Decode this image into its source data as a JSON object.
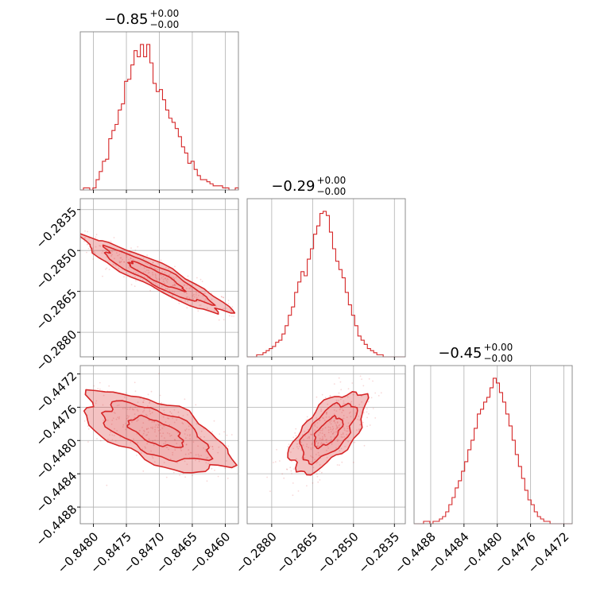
{
  "chart_data": {
    "type": "corner",
    "color": "#d62728",
    "parameters": [
      {
        "name": "p0",
        "title_main": "−0.85",
        "title_sup": "+0.00",
        "title_sub": "−0.00",
        "range": [
          -0.8482,
          -0.8458
        ],
        "ticks": [
          -0.848,
          -0.8475,
          -0.847,
          -0.8465,
          -0.846
        ],
        "tick_labels": [
          "−0.8480",
          "−0.8475",
          "−0.8470",
          "−0.8465",
          "−0.8460"
        ],
        "hist": [
          0,
          1,
          1,
          0,
          1,
          5,
          9,
          14,
          15,
          25,
          29,
          32,
          39,
          42,
          53,
          54,
          61,
          68,
          65,
          71,
          65,
          71,
          62,
          52,
          48,
          49,
          44,
          39,
          35,
          33,
          30,
          26,
          21,
          18,
          13,
          14,
          10,
          7,
          5,
          5,
          4,
          3,
          2,
          2,
          2,
          1,
          1,
          0,
          0,
          1
        ]
      },
      {
        "name": "p1",
        "title_main": "−0.29",
        "title_sup": "+0.00",
        "title_sub": "−0.00",
        "range": [
          -0.2889,
          -0.2831
        ],
        "ticks": [
          -0.288,
          -0.2865,
          -0.285,
          -0.2835
        ],
        "tick_labels": [
          "−0.2880",
          "−0.2865",
          "−0.2850",
          "−0.2835"
        ],
        "hist": [
          0,
          0,
          0,
          1,
          1,
          2,
          3,
          4,
          5,
          7,
          8,
          11,
          15,
          20,
          24,
          31,
          36,
          41,
          39,
          47,
          52,
          59,
          63,
          69,
          70,
          68,
          60,
          52,
          46,
          42,
          38,
          31,
          25,
          20,
          15,
          10,
          8,
          6,
          4,
          3,
          2,
          1,
          1,
          0,
          0,
          0,
          0,
          0,
          0,
          0
        ]
      },
      {
        "name": "p2",
        "title_main": "−0.45",
        "title_sup": "+0.00",
        "title_sub": "−0.00",
        "range": [
          -0.449,
          -0.4471
        ],
        "ticks": [
          -0.4488,
          -0.4484,
          -0.448,
          -0.4476,
          -0.4472
        ],
        "tick_labels": [
          "−0.4488",
          "−0.4484",
          "−0.4480",
          "−0.4476",
          "−0.4472"
        ],
        "hist": [
          0,
          0,
          0,
          1,
          1,
          0,
          1,
          1,
          2,
          3,
          5,
          8,
          11,
          15,
          18,
          22,
          26,
          31,
          35,
          40,
          46,
          48,
          51,
          53,
          57,
          61,
          59,
          55,
          51,
          46,
          41,
          35,
          29,
          24,
          19,
          14,
          10,
          8,
          5,
          3,
          2,
          1,
          1,
          0,
          0,
          0,
          0,
          0,
          0,
          0
        ]
      }
    ],
    "pairs": [
      {
        "x": 0,
        "y": 1,
        "center": [
          -0.84705,
          -0.28593
        ],
        "spread": [
          0.00055,
          0.00069
        ],
        "correlation": -0.93
      },
      {
        "x": 0,
        "y": 2,
        "center": [
          -0.84705,
          -0.4479
        ],
        "spread": [
          0.00055,
          0.00024
        ],
        "correlation": -0.62
      },
      {
        "x": 1,
        "y": 2,
        "center": [
          -0.28593,
          -0.4479
        ],
        "spread": [
          0.00069,
          0.00024
        ],
        "correlation": 0.62
      }
    ],
    "contour_levels": [
      0.39,
      0.86,
      0.99
    ],
    "grid": true
  }
}
